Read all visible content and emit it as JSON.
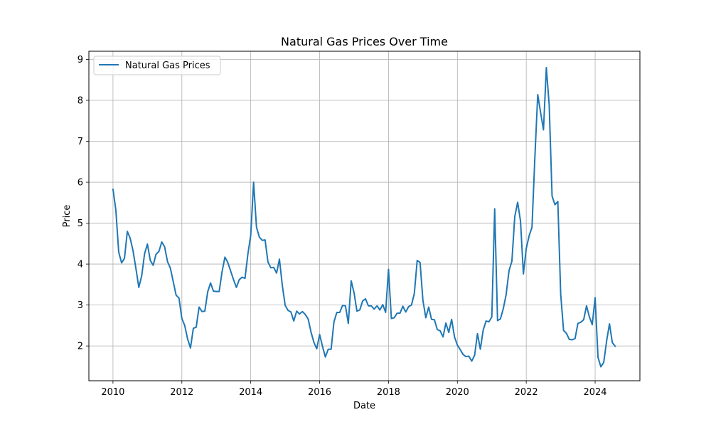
{
  "chart_data": {
    "type": "line",
    "title": "Natural Gas Prices Over Time",
    "xlabel": "Date",
    "ylabel": "Price",
    "xlim": [
      2009.3,
      2025.3
    ],
    "ylim": [
      1.15,
      9.2
    ],
    "x_ticks": [
      2010,
      2012,
      2014,
      2016,
      2018,
      2020,
      2022,
      2024
    ],
    "x_tick_labels": [
      "2010",
      "2012",
      "2014",
      "2016",
      "2018",
      "2020",
      "2022",
      "2024"
    ],
    "y_ticks": [
      2,
      3,
      4,
      5,
      6,
      7,
      8,
      9
    ],
    "y_tick_labels": [
      "2",
      "3",
      "4",
      "5",
      "6",
      "7",
      "8",
      "9"
    ],
    "grid": true,
    "legend_position": "top-left",
    "series": [
      {
        "name": "Natural Gas Prices",
        "color": "#1f77b4",
        "x": [
          "2010-01",
          "2010-02",
          "2010-03",
          "2010-04",
          "2010-05",
          "2010-06",
          "2010-07",
          "2010-08",
          "2010-09",
          "2010-10",
          "2010-11",
          "2010-12",
          "2011-01",
          "2011-02",
          "2011-03",
          "2011-04",
          "2011-05",
          "2011-06",
          "2011-07",
          "2011-08",
          "2011-09",
          "2011-10",
          "2011-11",
          "2011-12",
          "2012-01",
          "2012-02",
          "2012-03",
          "2012-04",
          "2012-05",
          "2012-06",
          "2012-07",
          "2012-08",
          "2012-09",
          "2012-10",
          "2012-11",
          "2012-12",
          "2013-01",
          "2013-02",
          "2013-03",
          "2013-04",
          "2013-05",
          "2013-06",
          "2013-07",
          "2013-08",
          "2013-09",
          "2013-10",
          "2013-11",
          "2013-12",
          "2014-01",
          "2014-02",
          "2014-03",
          "2014-04",
          "2014-05",
          "2014-06",
          "2014-07",
          "2014-08",
          "2014-09",
          "2014-10",
          "2014-11",
          "2014-12",
          "2015-01",
          "2015-02",
          "2015-03",
          "2015-04",
          "2015-05",
          "2015-06",
          "2015-07",
          "2015-08",
          "2015-09",
          "2015-10",
          "2015-11",
          "2015-12",
          "2016-01",
          "2016-02",
          "2016-03",
          "2016-04",
          "2016-05",
          "2016-06",
          "2016-07",
          "2016-08",
          "2016-09",
          "2016-10",
          "2016-11",
          "2016-12",
          "2017-01",
          "2017-02",
          "2017-03",
          "2017-04",
          "2017-05",
          "2017-06",
          "2017-07",
          "2017-08",
          "2017-09",
          "2017-10",
          "2017-11",
          "2017-12",
          "2018-01",
          "2018-02",
          "2018-03",
          "2018-04",
          "2018-05",
          "2018-06",
          "2018-07",
          "2018-08",
          "2018-09",
          "2018-10",
          "2018-11",
          "2018-12",
          "2019-01",
          "2019-02",
          "2019-03",
          "2019-04",
          "2019-05",
          "2019-06",
          "2019-07",
          "2019-08",
          "2019-09",
          "2019-10",
          "2019-11",
          "2019-12",
          "2020-01",
          "2020-02",
          "2020-03",
          "2020-04",
          "2020-05",
          "2020-06",
          "2020-07",
          "2020-08",
          "2020-09",
          "2020-10",
          "2020-11",
          "2020-12",
          "2021-01",
          "2021-02",
          "2021-03",
          "2021-04",
          "2021-05",
          "2021-06",
          "2021-07",
          "2021-08",
          "2021-09",
          "2021-10",
          "2021-11",
          "2021-12",
          "2022-01",
          "2022-02",
          "2022-03",
          "2022-04",
          "2022-05",
          "2022-06",
          "2022-07",
          "2022-08",
          "2022-09",
          "2022-10",
          "2022-11",
          "2022-12",
          "2023-01",
          "2023-02",
          "2023-03",
          "2023-04",
          "2023-05",
          "2023-06",
          "2023-07",
          "2023-08",
          "2023-09",
          "2023-10",
          "2023-11",
          "2023-12",
          "2024-01",
          "2024-02",
          "2024-03",
          "2024-04",
          "2024-05",
          "2024-06",
          "2024-07",
          "2024-08"
        ],
        "y": [
          5.83,
          5.32,
          4.29,
          4.03,
          4.14,
          4.8,
          4.63,
          4.32,
          3.89,
          3.43,
          3.71,
          4.25,
          4.49,
          4.09,
          3.97,
          4.24,
          4.31,
          4.54,
          4.42,
          4.06,
          3.9,
          3.57,
          3.24,
          3.17,
          2.67,
          2.5,
          2.17,
          1.95,
          2.43,
          2.46,
          2.95,
          2.84,
          2.85,
          3.32,
          3.54,
          3.34,
          3.33,
          3.33,
          3.81,
          4.17,
          4.04,
          3.83,
          3.62,
          3.43,
          3.62,
          3.68,
          3.65,
          4.24,
          4.71,
          6.0,
          4.9,
          4.66,
          4.58,
          4.59,
          4.05,
          3.91,
          3.92,
          3.78,
          4.12,
          3.48,
          2.99,
          2.87,
          2.83,
          2.61,
          2.85,
          2.78,
          2.84,
          2.77,
          2.66,
          2.34,
          2.09,
          1.93,
          2.28,
          1.99,
          1.73,
          1.92,
          1.92,
          2.59,
          2.82,
          2.82,
          2.99,
          2.98,
          2.55,
          3.59,
          3.3,
          2.85,
          2.88,
          3.1,
          3.15,
          2.98,
          2.98,
          2.9,
          2.98,
          2.88,
          3.01,
          2.82,
          3.87,
          2.67,
          2.69,
          2.8,
          2.8,
          2.97,
          2.83,
          2.96,
          3.0,
          3.28,
          4.09,
          4.04,
          3.11,
          2.69,
          2.95,
          2.65,
          2.64,
          2.4,
          2.37,
          2.22,
          2.56,
          2.33,
          2.65,
          2.22,
          2.02,
          1.91,
          1.79,
          1.74,
          1.75,
          1.63,
          1.77,
          2.3,
          1.92,
          2.39,
          2.61,
          2.59,
          2.71,
          5.35,
          2.62,
          2.66,
          2.91,
          3.26,
          3.84,
          4.07,
          5.16,
          5.51,
          5.05,
          3.76,
          4.38,
          4.69,
          4.9,
          6.6,
          8.14,
          7.7,
          7.28,
          8.8,
          7.88,
          5.66,
          5.45,
          5.53,
          3.27,
          2.38,
          2.31,
          2.16,
          2.15,
          2.18,
          2.55,
          2.58,
          2.64,
          2.98,
          2.71,
          2.52,
          3.18,
          1.72,
          1.49,
          1.6,
          2.12,
          2.54,
          2.08,
          1.99
        ]
      }
    ]
  }
}
